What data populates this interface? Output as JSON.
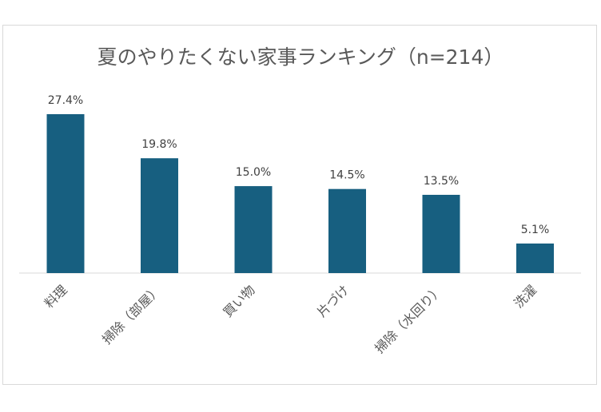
{
  "chart_data": {
    "type": "bar",
    "title": "夏のやりたくない家事ランキング（n=214）",
    "categories": [
      "料理",
      "掃除（部屋）",
      "買い物",
      "片づけ",
      "掃除（水回り）",
      "洗濯"
    ],
    "values": [
      27.4,
      19.8,
      15.0,
      14.5,
      13.5,
      5.1
    ],
    "data_labels": [
      "27.4%",
      "19.8%",
      "15.0%",
      "14.5%",
      "13.5%",
      "5.1%"
    ],
    "xlabel": "",
    "ylabel": "",
    "ylim": [
      0,
      27.4
    ],
    "grid": false,
    "legend": "none",
    "bar_color": "#175f80"
  }
}
